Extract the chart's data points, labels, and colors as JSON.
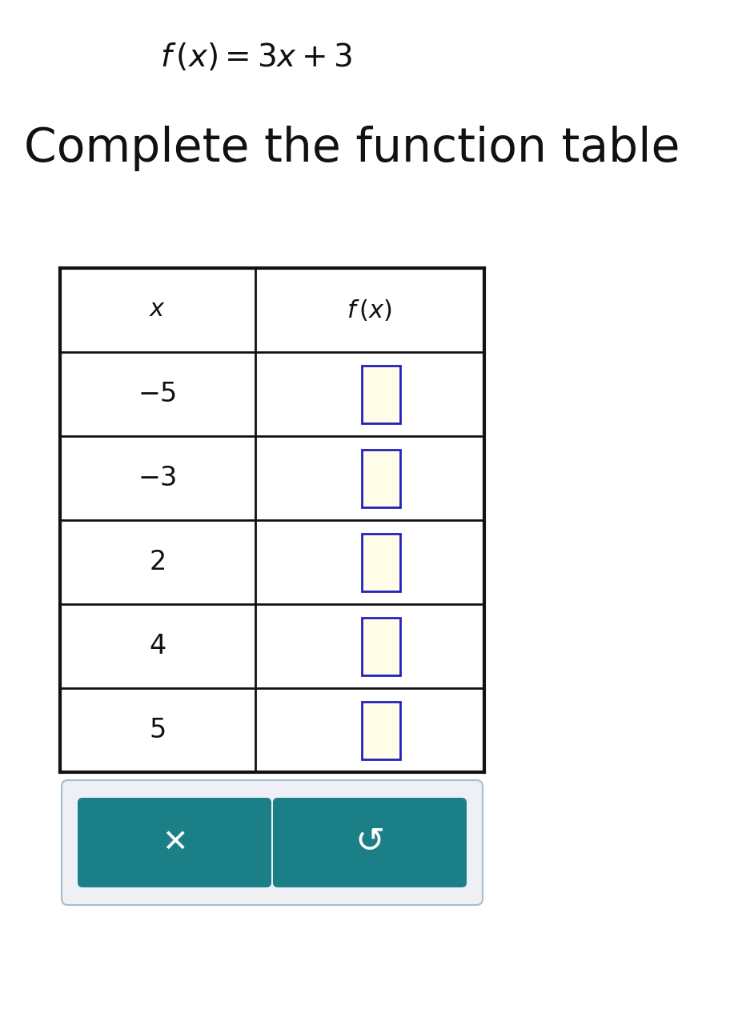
{
  "background_color": "#ffffff",
  "formula_text": "$f\\,(x)=3x+3$",
  "subtitle_text": "Complete the function table",
  "table_x_values": [
    "-5",
    "-3",
    "2",
    "4",
    "5"
  ],
  "input_box_fill": "#fffde7",
  "input_box_border": "#2222bb",
  "button_color": "#1b7f87",
  "button_text_color": "#ffffff",
  "container_border": "#aabbcc",
  "container_fill": "#eef0f5",
  "line_color": "#111111"
}
